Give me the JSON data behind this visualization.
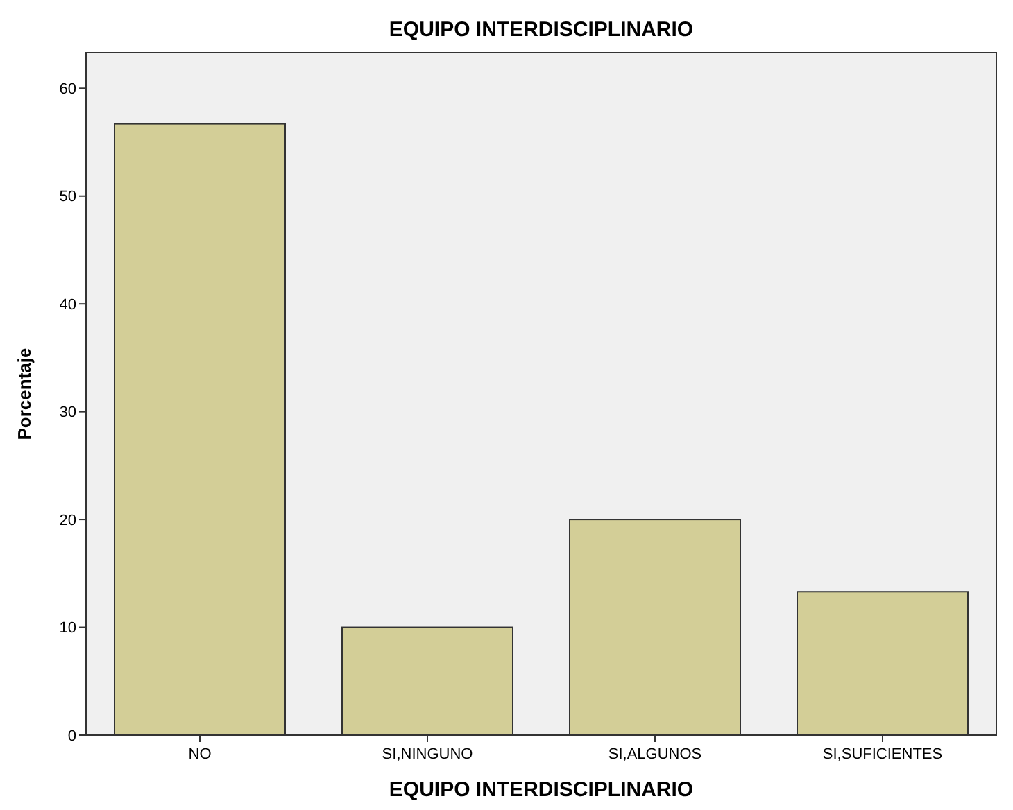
{
  "chart_data": {
    "type": "bar",
    "title": "EQUIPO INTERDISCIPLINARIO",
    "xlabel": "EQUIPO INTERDISCIPLINARIO",
    "ylabel": "Porcentaje",
    "categories": [
      "NO",
      "SI,NINGUNO",
      "SI,ALGUNOS",
      "SI,SUFICIENTES"
    ],
    "values": [
      56.7,
      10,
      20,
      13.3
    ],
    "color": "#d3ce97",
    "ylim": [
      0,
      63.3
    ],
    "yticks": [
      0,
      10,
      20,
      30,
      40,
      50,
      60
    ],
    "grid": false
  }
}
